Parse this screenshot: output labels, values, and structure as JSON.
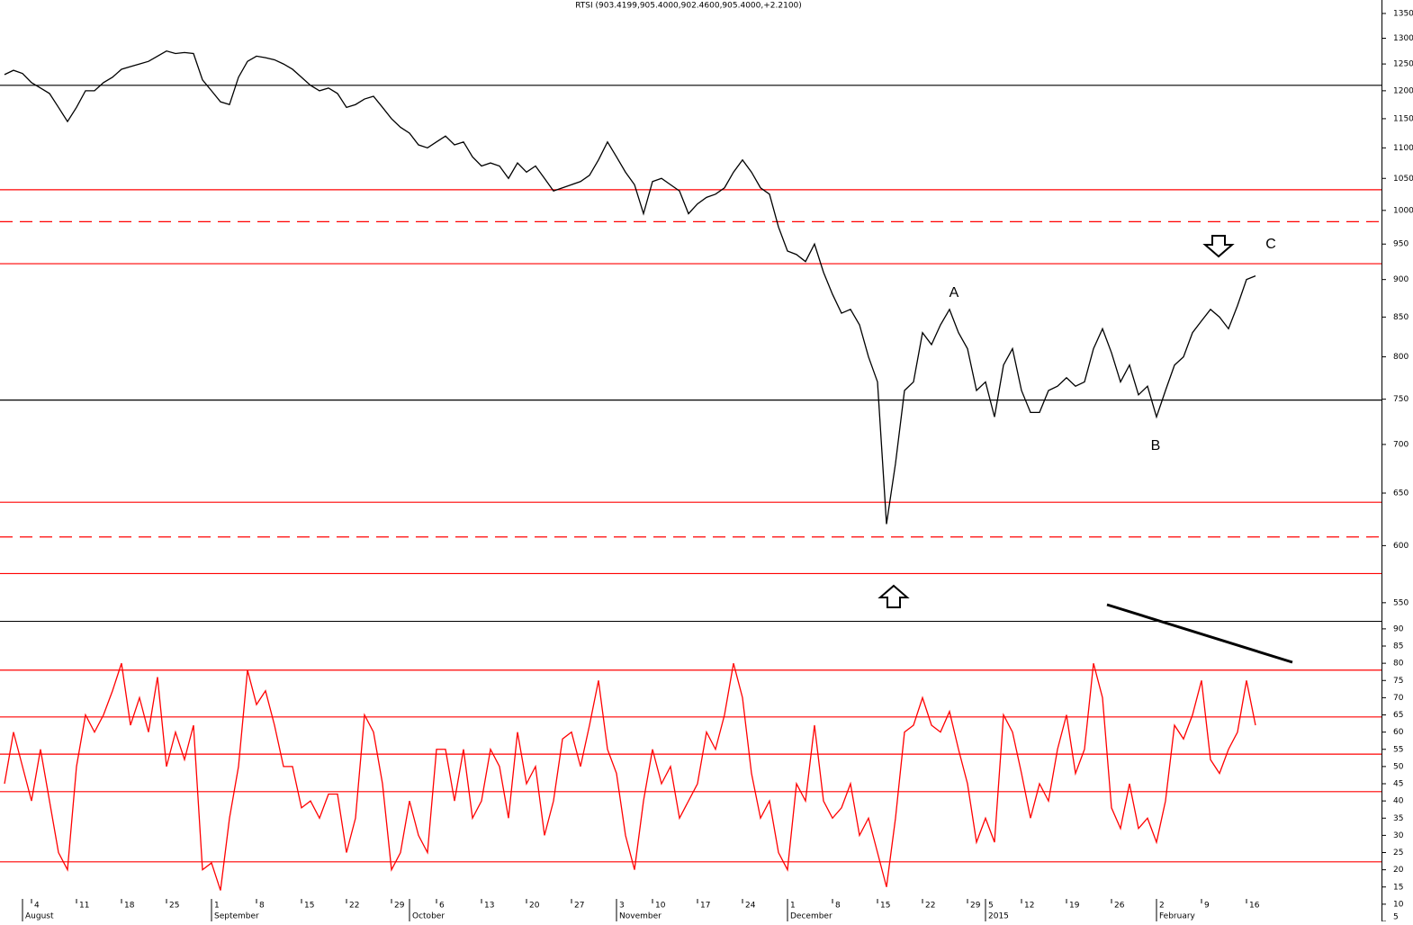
{
  "chart_data": [
    {
      "type": "line",
      "title": "RTSI (903.4199,905.4000,902.4600,905.4000,+2.2100)",
      "log_scale": true,
      "color": "#000000",
      "categories": [
        null,
        null,
        null,
        "4",
        null,
        null,
        null,
        null,
        "11",
        null,
        null,
        null,
        null,
        "18",
        null,
        null,
        null,
        null,
        "25",
        null,
        null,
        null,
        null,
        "1",
        null,
        null,
        null,
        null,
        "8",
        null,
        null,
        null,
        null,
        "15",
        null,
        null,
        null,
        null,
        "22",
        null,
        null,
        null,
        null,
        "29",
        null,
        null,
        null,
        null,
        "6",
        null,
        null,
        null,
        null,
        "13",
        null,
        null,
        null,
        null,
        "20",
        null,
        null,
        null,
        null,
        "27",
        null,
        null,
        null,
        null,
        "3",
        null,
        null,
        null,
        "10",
        null,
        null,
        null,
        null,
        "17",
        null,
        null,
        null,
        null,
        "24",
        null,
        null,
        null,
        null,
        "1",
        null,
        null,
        null,
        null,
        "8",
        null,
        null,
        null,
        null,
        "15",
        null,
        null,
        null,
        null,
        "22",
        null,
        null,
        null,
        null,
        "29",
        null,
        "5",
        null,
        null,
        null,
        "12",
        null,
        null,
        null,
        null,
        "19",
        null,
        null,
        null,
        null,
        "26",
        null,
        null,
        null,
        null,
        "2",
        null,
        null,
        null,
        null,
        "9",
        null,
        null,
        null,
        null,
        "16",
        null
      ],
      "month_categories": [
        null,
        null,
        "August",
        null,
        null,
        null,
        null,
        null,
        null,
        null,
        null,
        null,
        null,
        null,
        null,
        null,
        null,
        null,
        null,
        null,
        null,
        null,
        null,
        "September",
        null,
        null,
        null,
        null,
        null,
        null,
        null,
        null,
        null,
        null,
        null,
        null,
        null,
        null,
        null,
        null,
        null,
        null,
        null,
        null,
        null,
        "October",
        null,
        null,
        null,
        null,
        null,
        null,
        null,
        null,
        null,
        null,
        null,
        null,
        null,
        null,
        null,
        null,
        null,
        null,
        null,
        null,
        null,
        null,
        "November",
        null,
        null,
        null,
        null,
        null,
        null,
        null,
        null,
        null,
        null,
        null,
        null,
        null,
        null,
        null,
        null,
        null,
        null,
        "December",
        null,
        null,
        null,
        null,
        null,
        null,
        null,
        null,
        null,
        null,
        null,
        null,
        null,
        null,
        null,
        null,
        null,
        null,
        null,
        null,
        null,
        "2015",
        null,
        null,
        null,
        null,
        null,
        null,
        null,
        null,
        null,
        null,
        null,
        null,
        null,
        null,
        null,
        null,
        null,
        null,
        "February",
        null,
        null,
        null,
        null,
        null,
        null,
        null,
        null,
        null,
        null,
        null
      ],
      "values": [
        1230,
        1238,
        1232,
        1215,
        1205,
        1195,
        1170,
        1145,
        1170,
        1200,
        1200,
        1215,
        1225,
        1240,
        1245,
        1250,
        1255,
        1265,
        1275,
        1270,
        1272,
        1270,
        1220,
        1200,
        1180,
        1175,
        1225,
        1255,
        1265,
        1262,
        1258,
        1250,
        1240,
        1225,
        1210,
        1200,
        1205,
        1195,
        1170,
        1175,
        1185,
        1190,
        1170,
        1150,
        1135,
        1125,
        1105,
        1100,
        1110,
        1120,
        1105,
        1110,
        1085,
        1070,
        1075,
        1070,
        1050,
        1075,
        1060,
        1070,
        1050,
        1030,
        1035,
        1040,
        1045,
        1055,
        1080,
        1110,
        1085,
        1060,
        1040,
        995,
        1045,
        1050,
        1040,
        1030,
        995,
        1010,
        1020,
        1025,
        1035,
        1060,
        1080,
        1060,
        1035,
        1025,
        975,
        940,
        935,
        925,
        950,
        910,
        880,
        855,
        860,
        840,
        800,
        770,
        620,
        680,
        760,
        770,
        830,
        815,
        840,
        860,
        830,
        810,
        760,
        770,
        730,
        790,
        810,
        760,
        735,
        735,
        760,
        765,
        775,
        765,
        770,
        810,
        835,
        805,
        770,
        790,
        755,
        765,
        730,
        760,
        790,
        800,
        830,
        845,
        860,
        850,
        835,
        865,
        900,
        905
      ],
      "ylim": [
        535,
        1378
      ],
      "yticks": [
        550,
        600,
        650,
        700,
        750,
        800,
        850,
        900,
        950,
        1000,
        1050,
        1100,
        1150,
        1200,
        1250,
        1300,
        1350
      ],
      "levels": [
        {
          "value": 1210,
          "color": "#000000",
          "dashed": false
        },
        {
          "value": 1032,
          "color": "#ff0000",
          "dashed": false
        },
        {
          "value": 983,
          "color": "#ff0000",
          "dashed": true
        },
        {
          "value": 922,
          "color": "#ff0000",
          "dashed": false
        },
        {
          "value": 749,
          "color": "#000000",
          "dashed": false
        },
        {
          "value": 641,
          "color": "#ff0000",
          "dashed": false
        },
        {
          "value": 608,
          "color": "#ff0000",
          "dashed": true
        },
        {
          "value": 575,
          "color": "#ff0000",
          "dashed": false
        }
      ],
      "annotations": [
        "A",
        "B",
        "C"
      ]
    },
    {
      "type": "line",
      "color": "#ff0000",
      "values": [
        45,
        60,
        50,
        40,
        55,
        40,
        25,
        20,
        50,
        65,
        60,
        65,
        72,
        80,
        62,
        70,
        60,
        76,
        50,
        60,
        52,
        62,
        20,
        22,
        14,
        35,
        50,
        78,
        68,
        72,
        62,
        50,
        50,
        38,
        40,
        35,
        42,
        42,
        25,
        35,
        65,
        60,
        45,
        20,
        25,
        40,
        30,
        25,
        55,
        55,
        40,
        55,
        35,
        40,
        55,
        50,
        35,
        60,
        45,
        50,
        30,
        40,
        58,
        60,
        50,
        62,
        75,
        55,
        48,
        30,
        20,
        40,
        55,
        45,
        50,
        35,
        40,
        45,
        60,
        55,
        65,
        80,
        70,
        48,
        35,
        40,
        25,
        20,
        45,
        40,
        62,
        40,
        35,
        38,
        45,
        30,
        35,
        25,
        15,
        35,
        60,
        62,
        70,
        62,
        60,
        66,
        55,
        45,
        28,
        35,
        28,
        65,
        60,
        48,
        35,
        45,
        40,
        55,
        65,
        48,
        55,
        80,
        70,
        38,
        32,
        45,
        32,
        35,
        28,
        40,
        62,
        58,
        65,
        75,
        52,
        48,
        55,
        60,
        75,
        62
      ],
      "ylim": [
        5,
        91.8
      ],
      "yticks": [
        5,
        10,
        15,
        20,
        25,
        30,
        35,
        40,
        45,
        50,
        55,
        60,
        65,
        70,
        75,
        80,
        85,
        90
      ],
      "levels": [
        {
          "value": 78,
          "color": "#ff0000",
          "dashed": false
        },
        {
          "value": 64.4,
          "color": "#ff0000",
          "dashed": false
        },
        {
          "value": 53.6,
          "color": "#ff0000",
          "dashed": false
        },
        {
          "value": 42.7,
          "color": "#ff0000",
          "dashed": false
        },
        {
          "value": 22.3,
          "color": "#ff0000",
          "dashed": false
        }
      ]
    }
  ]
}
